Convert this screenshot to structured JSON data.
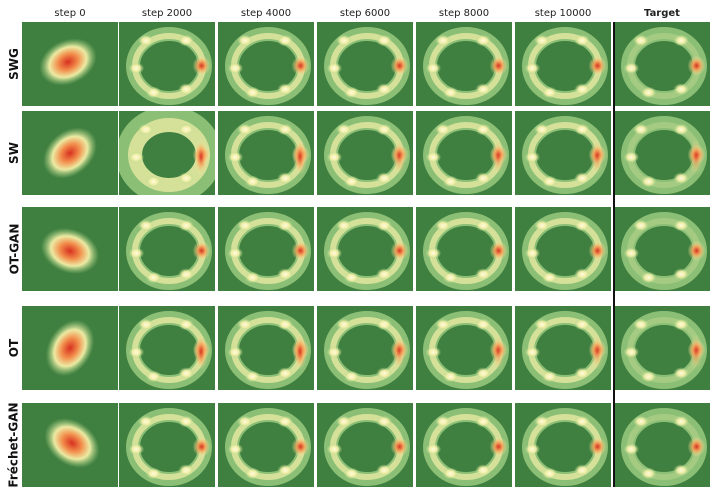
{
  "columns": [
    {
      "label": "step 0",
      "bold": false
    },
    {
      "label": "step 2000",
      "bold": false
    },
    {
      "label": "step 4000",
      "bold": false
    },
    {
      "label": "step 6000",
      "bold": false
    },
    {
      "label": "step 8000",
      "bold": false
    },
    {
      "label": "step 10000",
      "bold": false
    },
    {
      "label": "Target",
      "bold": true
    }
  ],
  "rows": [
    {
      "label": "SWG"
    },
    {
      "label": "SW"
    },
    {
      "label": "OT-GAN"
    },
    {
      "label": "OT"
    },
    {
      "label": "Fréchet-GAN"
    }
  ],
  "colors": {
    "background": "#3f7f3f",
    "low": "#a6d48a",
    "mid": "#f5f0a8",
    "high": "#d7301f"
  }
}
